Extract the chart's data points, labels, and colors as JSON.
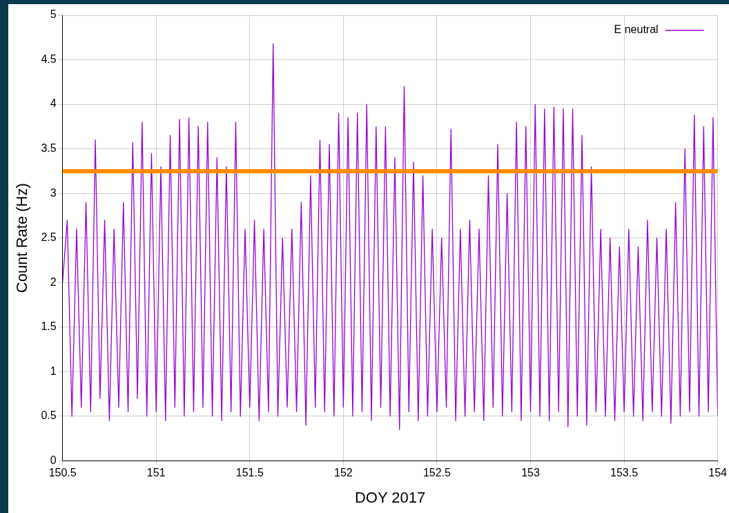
{
  "chart_data": {
    "type": "line",
    "xlabel": "DOY 2017",
    "ylabel": "Count Rate (Hz)",
    "xlim": [
      150.5,
      154
    ],
    "xticks": [
      150.5,
      151,
      151.5,
      152,
      152.5,
      153,
      153.5,
      154
    ],
    "ylim": [
      0,
      5
    ],
    "yticks": [
      0,
      0.5,
      1,
      1.5,
      2,
      2.5,
      3,
      3.5,
      4,
      4.5,
      5
    ],
    "grid": true,
    "legend": "top right",
    "marker": "none",
    "line_style": "solid",
    "series": [
      {
        "name": "E neutral",
        "color": "#9400d3",
        "x": [
          150.5,
          150.525,
          150.55,
          150.575,
          150.6,
          150.625,
          150.65,
          150.675,
          150.7,
          150.725,
          150.75,
          150.775,
          150.8,
          150.825,
          150.85,
          150.875,
          150.9,
          150.925,
          150.95,
          150.975,
          151,
          151.025,
          151.05,
          151.075,
          151.1,
          151.125,
          151.15,
          151.175,
          151.2,
          151.225,
          151.25,
          151.275,
          151.3,
          151.325,
          151.35,
          151.375,
          151.4,
          151.425,
          151.45,
          151.475,
          151.5,
          151.525,
          151.55,
          151.575,
          151.6,
          151.625,
          151.65,
          151.675,
          151.7,
          151.725,
          151.75,
          151.775,
          151.8,
          151.825,
          151.85,
          151.875,
          151.9,
          151.925,
          151.95,
          151.975,
          152,
          152.025,
          152.05,
          152.075,
          152.1,
          152.125,
          152.15,
          152.175,
          152.2,
          152.225,
          152.25,
          152.275,
          152.3,
          152.325,
          152.35,
          152.375,
          152.4,
          152.425,
          152.45,
          152.475,
          152.5,
          152.525,
          152.55,
          152.575,
          152.6,
          152.625,
          152.65,
          152.675,
          152.7,
          152.725,
          152.75,
          152.775,
          152.8,
          152.825,
          152.85,
          152.875,
          152.9,
          152.925,
          152.95,
          152.975,
          153,
          153.025,
          153.05,
          153.075,
          153.1,
          153.125,
          153.15,
          153.175,
          153.2,
          153.225,
          153.25,
          153.275,
          153.3,
          153.325,
          153.35,
          153.375,
          153.4,
          153.425,
          153.45,
          153.475,
          153.5,
          153.525,
          153.55,
          153.575,
          153.6,
          153.625,
          153.65,
          153.675,
          153.7,
          153.725,
          153.75,
          153.775,
          153.8,
          153.825,
          153.85,
          153.875,
          153.9,
          153.925,
          153.95,
          153.975,
          154
        ],
        "values": [
          2.0,
          2.7,
          0.5,
          2.6,
          0.6,
          2.9,
          0.55,
          3.6,
          0.7,
          2.7,
          0.45,
          2.6,
          0.6,
          2.9,
          0.55,
          3.57,
          0.7,
          3.8,
          0.5,
          3.45,
          0.55,
          3.3,
          0.45,
          3.65,
          0.6,
          3.83,
          0.5,
          3.85,
          0.55,
          3.75,
          0.6,
          3.8,
          0.5,
          3.4,
          0.45,
          3.3,
          0.55,
          3.8,
          0.5,
          2.6,
          0.6,
          2.7,
          0.45,
          2.6,
          0.55,
          4.68,
          0.5,
          2.5,
          0.6,
          2.6,
          0.55,
          2.9,
          0.4,
          3.2,
          0.6,
          3.6,
          0.55,
          3.55,
          0.5,
          3.9,
          0.6,
          3.85,
          0.5,
          3.9,
          0.55,
          4.0,
          0.45,
          3.75,
          0.6,
          3.75,
          0.5,
          3.4,
          0.35,
          4.2,
          0.55,
          3.35,
          0.45,
          3.2,
          0.5,
          2.6,
          0.55,
          2.5,
          0.6,
          3.72,
          0.45,
          2.6,
          0.5,
          2.7,
          0.55,
          2.6,
          0.45,
          3.2,
          0.6,
          3.55,
          0.5,
          3.0,
          0.55,
          3.8,
          0.45,
          3.75,
          0.55,
          4.0,
          0.5,
          3.95,
          0.45,
          3.97,
          0.55,
          3.95,
          0.38,
          3.95,
          0.5,
          3.65,
          0.4,
          3.3,
          0.55,
          2.6,
          0.5,
          2.5,
          0.45,
          2.4,
          0.55,
          2.6,
          0.5,
          2.4,
          0.45,
          2.7,
          0.55,
          2.5,
          0.5,
          2.6,
          0.42,
          2.9,
          0.5,
          3.5,
          0.55,
          3.88,
          0.5,
          3.75,
          0.55,
          3.85,
          0.5
        ]
      }
    ],
    "ref_lines": [
      {
        "axis": "y",
        "value": 3.25,
        "color": "#ff8c00"
      }
    ]
  }
}
